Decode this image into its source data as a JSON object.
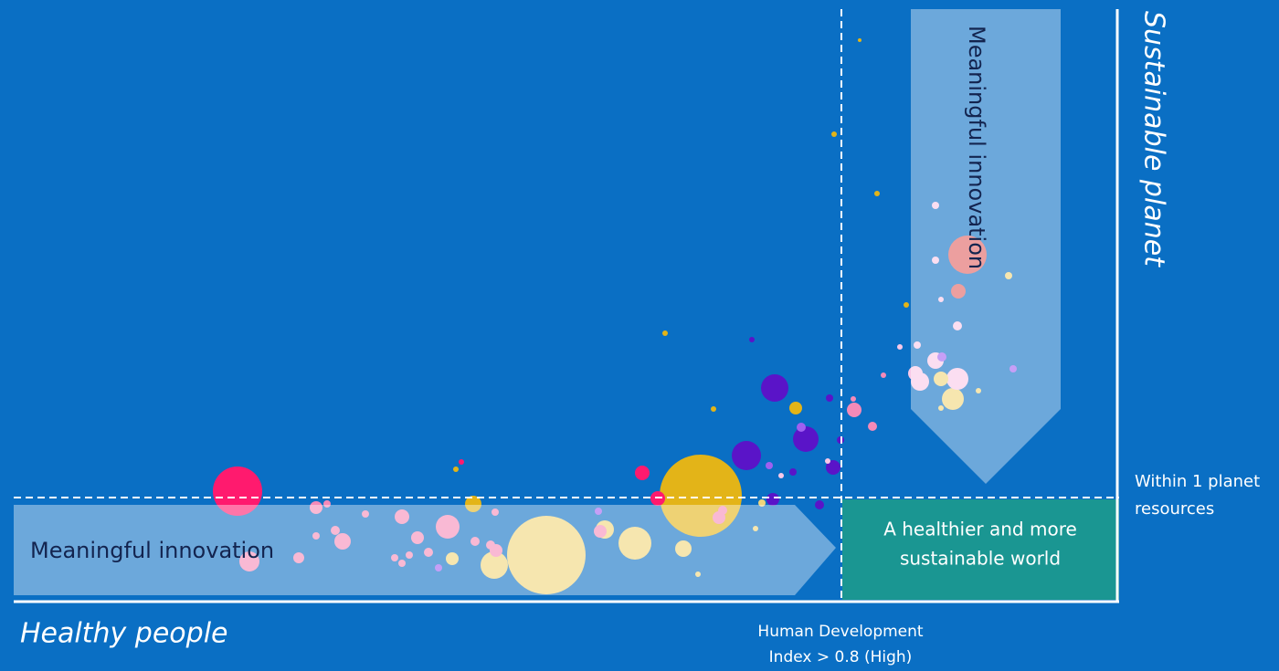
{
  "axes": {
    "vertical": "Sustainable planet",
    "horizontal": "Healthy people"
  },
  "arrows": {
    "horizontal": "Meaningful innovation",
    "vertical": "Meaningful innovation"
  },
  "target_box": [
    "A healthier and more",
    "sustainable world"
  ],
  "thresholds": {
    "resources": [
      "Within 1 planet",
      "resources"
    ],
    "hdi": [
      "Human Development",
      "Index > 0.8 (High)"
    ]
  }
}
